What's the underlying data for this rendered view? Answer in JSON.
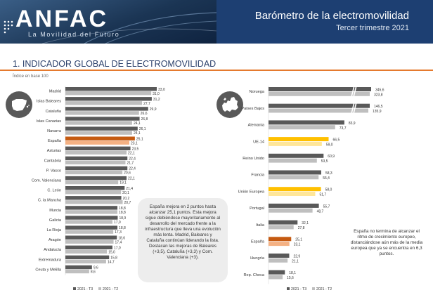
{
  "header": {
    "logo": "ANFAC",
    "tagline": "La Movilidad del Futuro",
    "title": "Barómetro de la electromovilidad",
    "subtitle": "Tercer trimestre 2021"
  },
  "section": {
    "title": "1. INDICADOR GLOBAL DE ELECTROMOVILIDAD",
    "base_note": "Índice en base 100"
  },
  "colors": {
    "t3": "#595959",
    "t2": "#bfbfbf",
    "spain_t3": "#c55a11",
    "spain_t2": "#f4b183",
    "eu_t3": "#ffc000",
    "eu_t2": "#ffe699",
    "accent": "#e57a2e",
    "banner": "#1d3f72"
  },
  "icons": {
    "left_map": "spain-map-icon",
    "right_map": "europe-map-icon"
  },
  "chart_data": [
    {
      "type": "bar",
      "orientation": "horizontal",
      "categories": [
        "Madrid",
        "Islas Baleares",
        "Cataluña",
        "Islas Canarias",
        "Navarra",
        "España",
        "Asturias",
        "Cantabria",
        "P. Vasco",
        "Com. Valenciana",
        "C. León",
        "C. la Mancha",
        "Murcia",
        "Galicia",
        "La Rioja",
        "Aragón",
        "Andalucía",
        "Extremadura",
        "Ceuta y Melilla"
      ],
      "series": [
        {
          "name": "2021 - T3",
          "values": [
            33.0,
            31.2,
            29.9,
            26.8,
            26.1,
            25.1,
            23.5,
            22.4,
            22.4,
            22.1,
            21.4,
            20.2,
            18.8,
            18.9,
            18.8,
            18.6,
            17.0,
            15.8,
            9.6
          ]
        },
        {
          "name": "2021 - T2",
          "values": [
            31.0,
            27.7,
            26.6,
            24.1,
            24.1,
            23.1,
            22.1,
            21.7,
            20.6,
            19.1,
            20.1,
            20.7,
            18.8,
            17.0,
            17.3,
            17.4,
            15.0,
            14.7,
            8.6
          ]
        }
      ],
      "highlight": "España",
      "xlim": [
        0,
        35
      ],
      "legend_position": "bottom",
      "note": "España mejora en 2 puntos hasta alcanzar 25,1 puntos. Esta mejora sigue debiéndose mayoritariamente al desarrollo del mercado frente a la infraestructura que lleva una evolución más lenta. Madrid, Baleares y Cataluña continúan liderando la lista. Destacan las mejoras de Baleares (+3,5), Cataluña (+3,3) y Com. Valenciana (+3)."
    },
    {
      "type": "bar",
      "orientation": "horizontal",
      "categories": [
        "Noruega",
        "Países Bajos",
        "Alemania",
        "UE-14",
        "Reino Unido",
        "Francia",
        "Unión Europea",
        "Portugal",
        "Italia",
        "España",
        "Hungría",
        "Rep. Checa"
      ],
      "series": [
        {
          "name": "2021 - T3",
          "values": [
            345.6,
            146.5,
            83.9,
            66.5,
            60.9,
            58.3,
            58.0,
            55.7,
            32.1,
            25.1,
            22.9,
            18.1
          ]
        },
        {
          "name": "2021 - T2",
          "values": [
            323.8,
            135.9,
            73.7,
            59.0,
            53.5,
            55.4,
            51.7,
            48.7,
            27.8,
            23.1,
            21.1,
            15.6
          ]
        }
      ],
      "highlight_spain": "España",
      "highlight_eu": [
        "UE-14",
        "Unión Europea"
      ],
      "axis_break_above": 100,
      "legend_position": "bottom",
      "note": "España no termina de alcanzar el ritmo de crecimiento europeo, distanciándose aún más de la media europea que ya se encuentra en 6,3 puntos."
    }
  ]
}
